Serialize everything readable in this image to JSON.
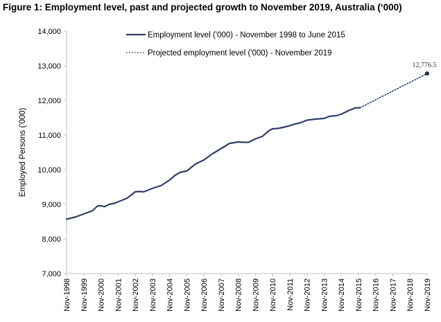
{
  "chart_data": {
    "type": "line",
    "title": "Figure 1: Employment level, past and projected growth to November 2019, Australia (‘000)",
    "xlabel": "",
    "ylabel": "Employed Persons ('000)",
    "ylim": [
      7000,
      14000
    ],
    "yticks": [
      7000,
      8000,
      9000,
      10000,
      11000,
      12000,
      13000,
      14000
    ],
    "ytick_labels": [
      "7,000",
      "8,000",
      "9,000",
      "10,000",
      "11,000",
      "12,000",
      "13,000",
      "14,000"
    ],
    "x_start_year": 1998,
    "x_end_year": 2019,
    "categories": [
      "Nov-1998",
      "Nov-1999",
      "Nov-2000",
      "Nov-2001",
      "Nov-2002",
      "Nov-2003",
      "Nov-2004",
      "Nov-2005",
      "Nov-2006",
      "Nov-2007",
      "Nov-2008",
      "Nov-2009",
      "Nov-2010",
      "Nov-2011",
      "Nov-2012",
      "Nov-2013",
      "Nov-2014",
      "Nov-2015",
      "Nov-2016",
      "Nov-2017",
      "Nov-2018",
      "Nov-2019"
    ],
    "grid": false,
    "legend_position": "top",
    "series": [
      {
        "name": "Employment level ('000) - November 1998 to June 2015",
        "style": "solid",
        "color": "#2e3f66",
        "x": [
          1998.0,
          1998.5,
          1999.0,
          1999.5,
          1999.8,
          2000.0,
          2000.2,
          2000.5,
          2000.8,
          2001.0,
          2001.5,
          2001.8,
          2002.0,
          2002.2,
          2002.5,
          2002.8,
          2003.0,
          2003.5,
          2004.0,
          2004.3,
          2004.6,
          2005.0,
          2005.5,
          2006.0,
          2006.5,
          2007.0,
          2007.5,
          2008.0,
          2008.3,
          2008.6,
          2009.0,
          2009.4,
          2009.8,
          2010.0,
          2010.3,
          2010.6,
          2011.0,
          2011.3,
          2011.6,
          2012.0,
          2012.5,
          2013.0,
          2013.3,
          2013.7,
          2014.0,
          2014.4,
          2014.8,
          2015.1
        ],
        "y": [
          8570,
          8630,
          8720,
          8810,
          8950,
          8960,
          8930,
          9000,
          9030,
          9070,
          9170,
          9280,
          9360,
          9370,
          9360,
          9420,
          9460,
          9540,
          9700,
          9830,
          9920,
          9960,
          10160,
          10280,
          10460,
          10610,
          10760,
          10800,
          10790,
          10790,
          10890,
          10960,
          11130,
          11180,
          11190,
          11220,
          11270,
          11320,
          11350,
          11430,
          11460,
          11480,
          11540,
          11560,
          11600,
          11700,
          11780,
          11790
        ]
      },
      {
        "name": "Projected employment level ('000) - November 2019",
        "style": "dotted",
        "color": "#2e3f66",
        "x": [
          2015.1,
          2019.0
        ],
        "y": [
          11790,
          12776.5
        ]
      }
    ],
    "annotations": [
      {
        "x": 2019.0,
        "y": 12776.5,
        "text": "12,776.5"
      }
    ]
  }
}
